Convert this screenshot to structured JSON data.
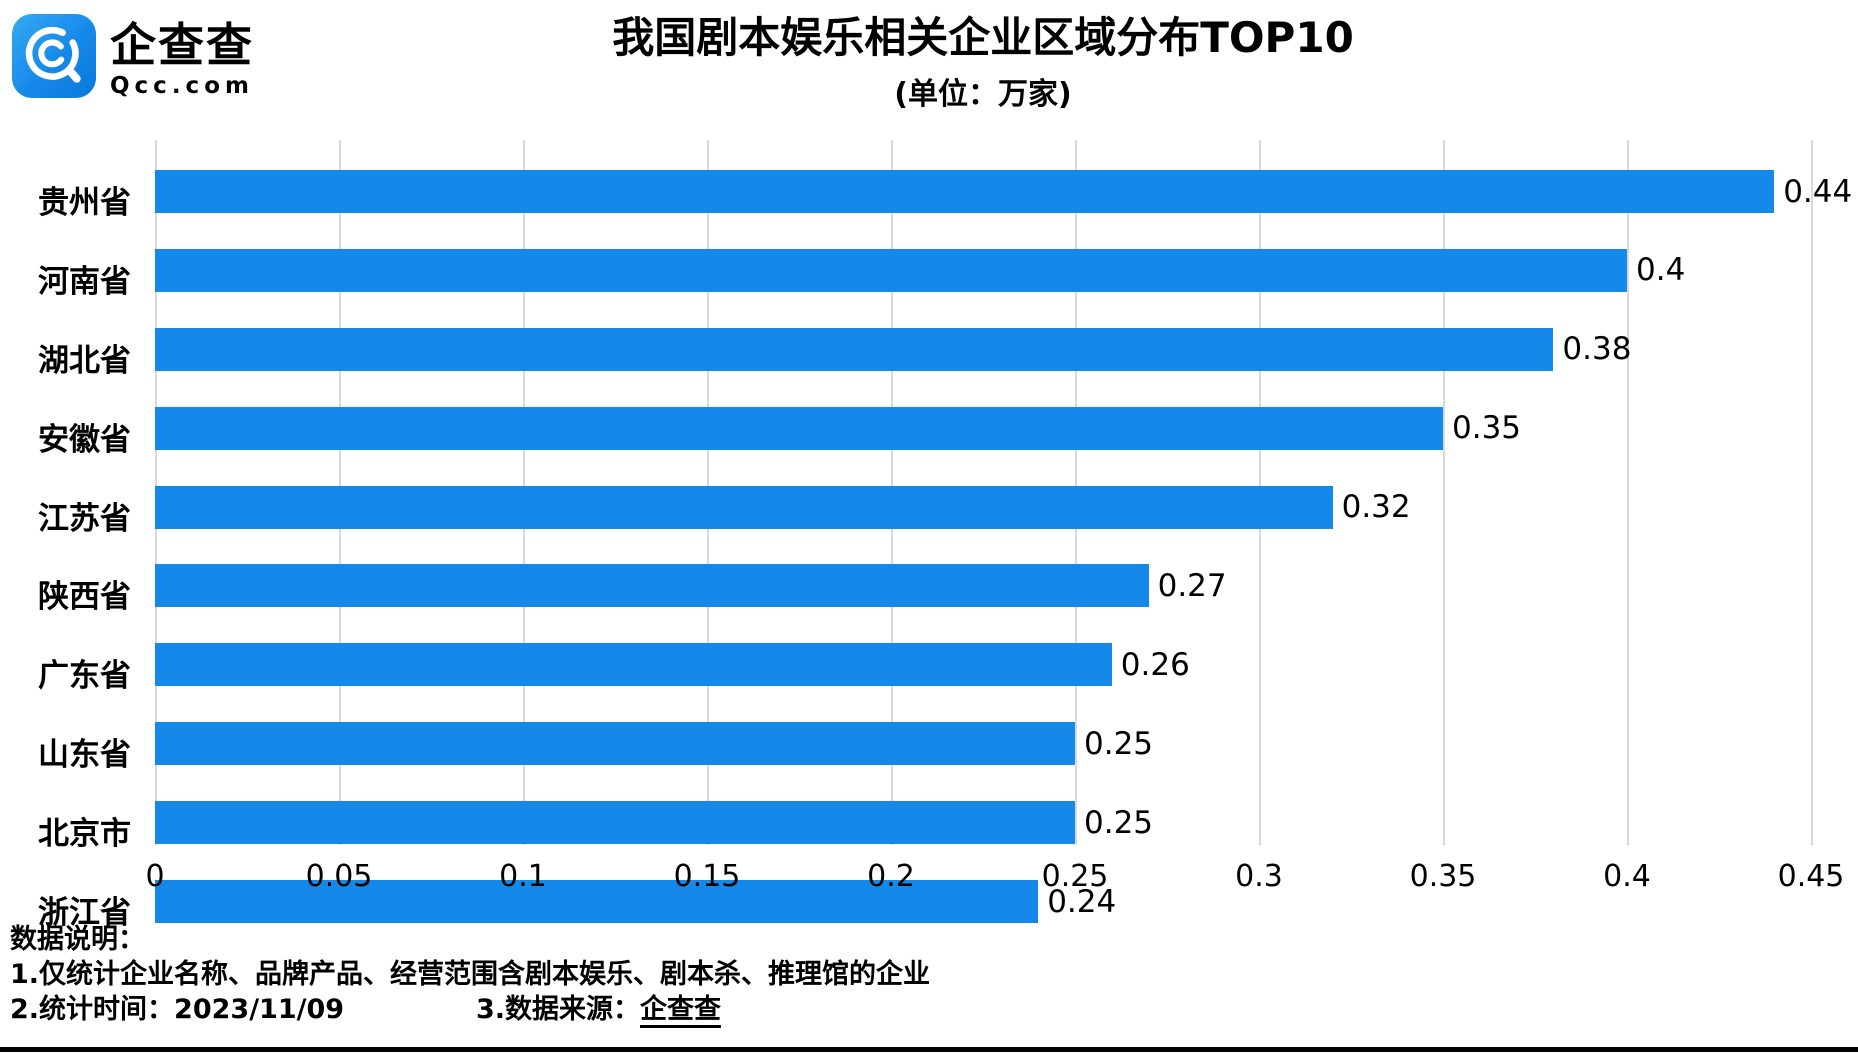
{
  "logo": {
    "name": "企查查",
    "domain": "Qcc.com",
    "brand_color": "#1589E9"
  },
  "chart_data": {
    "type": "bar",
    "orientation": "horizontal",
    "title": "我国剧本娱乐相关企业区域分布TOP10",
    "subtitle": "(单位：万家)",
    "categories": [
      "贵州省",
      "河南省",
      "湖北省",
      "安徽省",
      "江苏省",
      "陕西省",
      "广东省",
      "山东省",
      "北京市",
      "浙江省"
    ],
    "values": [
      0.44,
      0.4,
      0.38,
      0.35,
      0.32,
      0.27,
      0.26,
      0.25,
      0.25,
      0.24
    ],
    "value_labels": [
      "0.44",
      "0.4",
      "0.38",
      "0.35",
      "0.32",
      "0.27",
      "0.26",
      "0.25",
      "0.25",
      "0.24"
    ],
    "xlabel": "",
    "ylabel": "",
    "xlim": [
      0,
      0.45
    ],
    "x_tick_labels": [
      "0",
      "0.05",
      "0.1",
      "0.15",
      "0.2",
      "0.25",
      "0.3",
      "0.35",
      "0.4",
      "0.45"
    ],
    "x_tick_values": [
      0,
      0.05,
      0.1,
      0.15,
      0.2,
      0.25,
      0.3,
      0.35,
      0.4,
      0.45
    ],
    "grid": true,
    "legend": false,
    "bar_color": "#1589E9",
    "gridline_color": "#d9d9d9"
  },
  "footer": {
    "heading": "数据说明：",
    "note1": "1.仅统计企业名称、品牌产品、经营范围含剧本娱乐、剧本杀、推理馆的企业",
    "note2": "2.统计时间：2023/11/09",
    "note3_label": "3.数据来源：",
    "note3_source": "企查查"
  }
}
